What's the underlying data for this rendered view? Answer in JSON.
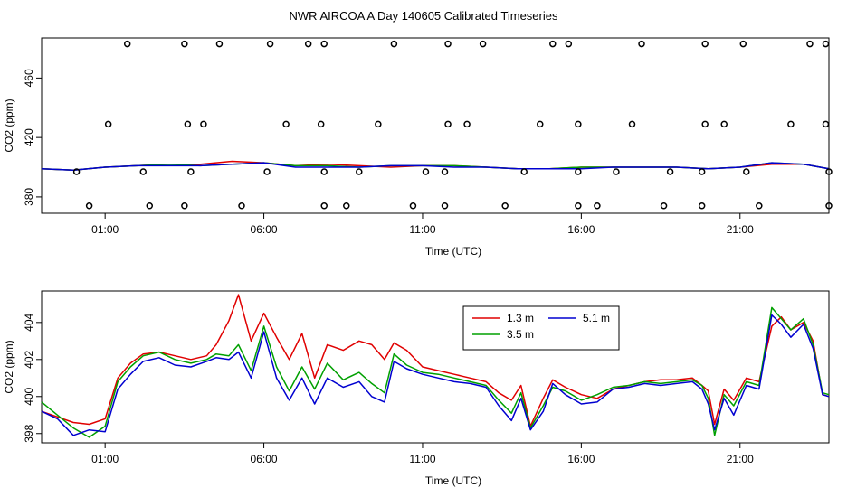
{
  "title": "NWR AIRCOA A  Day 140605  Calibrated Timeseries",
  "chart_data": [
    {
      "type": "scatter",
      "xlabel": "Time (UTC)",
      "ylabel": "CO2 (ppm)",
      "xlim": [
        -1.0,
        23.8
      ],
      "ylim": [
        369,
        487
      ],
      "x_ticks": [
        1,
        6,
        11,
        16,
        21
      ],
      "x_tick_labels": [
        "01:00",
        "06:00",
        "11:00",
        "16:00",
        "21:00"
      ],
      "y_ticks": [
        380,
        420,
        460
      ],
      "y_tick_labels": [
        "380",
        "420",
        "460"
      ],
      "grid": false,
      "calibration_points": {
        "name": "",
        "x": [
          1.1,
          3.6,
          4.1,
          6.7,
          7.8,
          9.6,
          11.8,
          12.4,
          14.7,
          15.9,
          17.6,
          19.9,
          20.5,
          22.6,
          23.7,
          1.7,
          3.5,
          4.6,
          6.2,
          7.4,
          7.9,
          10.1,
          11.8,
          12.9,
          15.1,
          15.6,
          17.9,
          19.9,
          21.1,
          23.2,
          23.7,
          0.5,
          2.4,
          3.5,
          5.3,
          7.9,
          8.6,
          10.7,
          11.7,
          13.6,
          15.9,
          16.5,
          18.6,
          19.8,
          21.6,
          23.8,
          0.1,
          2.2,
          3.7,
          6.1,
          7.9,
          9.0,
          11.1,
          11.7,
          14.2,
          15.9,
          17.1,
          18.8,
          19.8,
          21.2,
          23.8
        ],
        "y": [
          429,
          429,
          429,
          429,
          429,
          429,
          429,
          429,
          429,
          429,
          429,
          429,
          429,
          429,
          429,
          483,
          483,
          483,
          483,
          483,
          483,
          483,
          483,
          483,
          483,
          483,
          483,
          483,
          483,
          483,
          483,
          374,
          374,
          374,
          374,
          374,
          374,
          374,
          374,
          374,
          374,
          374,
          374,
          374,
          374,
          374,
          397,
          397,
          397,
          397,
          397,
          397,
          397,
          397,
          397,
          397,
          397,
          397,
          397,
          397,
          397
        ]
      },
      "series": [
        {
          "name": "1.3 m",
          "color": "#e00000",
          "x": [
            -1,
            0,
            1,
            2,
            3,
            4,
            5,
            6,
            7,
            8,
            9,
            10,
            11,
            12,
            13,
            14,
            15,
            16,
            17,
            18,
            19,
            20,
            21,
            22,
            23,
            23.8
          ],
          "values": [
            399,
            398,
            400,
            401,
            402,
            402,
            404,
            403,
            401,
            402,
            401,
            400,
            401,
            401,
            400,
            399,
            399,
            400,
            400,
            400,
            400,
            399,
            400,
            402,
            402,
            399
          ]
        },
        {
          "name": "3.5 m",
          "color": "#00a000",
          "x": [
            -1,
            0,
            1,
            2,
            3,
            4,
            5,
            6,
            7,
            8,
            9,
            10,
            11,
            12,
            13,
            14,
            15,
            16,
            17,
            18,
            19,
            20,
            21,
            22,
            23,
            23.8
          ],
          "values": [
            399,
            398,
            400,
            401,
            402,
            401,
            402,
            403,
            401,
            401,
            400,
            401,
            401,
            401,
            400,
            399,
            399,
            400,
            400,
            400,
            400,
            399,
            400,
            403,
            402,
            399
          ]
        },
        {
          "name": "5.1 m",
          "color": "#0000d0",
          "x": [
            -1,
            0,
            1,
            2,
            3,
            4,
            5,
            6,
            7,
            8,
            9,
            10,
            11,
            12,
            13,
            14,
            15,
            16,
            17,
            18,
            19,
            20,
            21,
            22,
            23,
            23.8
          ],
          "values": [
            399,
            398,
            400,
            401,
            401,
            401,
            402,
            403,
            400,
            400,
            400,
            401,
            401,
            400,
            400,
            399,
            399,
            399,
            400,
            400,
            400,
            399,
            400,
            403,
            402,
            399
          ]
        }
      ]
    },
    {
      "type": "line",
      "xlabel": "Time (UTC)",
      "ylabel": "CO2 (ppm)",
      "xlim": [
        -1.0,
        23.8
      ],
      "ylim": [
        397.5,
        405.7
      ],
      "x_ticks": [
        1,
        6,
        11,
        16,
        21
      ],
      "x_tick_labels": [
        "01:00",
        "06:00",
        "11:00",
        "16:00",
        "21:00"
      ],
      "y_ticks": [
        398,
        400,
        402,
        404
      ],
      "y_tick_labels": [
        "398",
        "400",
        "402",
        "404"
      ],
      "grid": false,
      "legend_position": "top-center",
      "series": [
        {
          "name": "1.3 m",
          "color": "#e00000",
          "x": [
            -1,
            -0.5,
            0,
            0.5,
            1,
            1.4,
            1.8,
            2.2,
            2.7,
            3.2,
            3.7,
            4.2,
            4.5,
            4.9,
            5.2,
            5.6,
            6.0,
            6.4,
            6.8,
            7.2,
            7.6,
            8.0,
            8.5,
            9.0,
            9.4,
            9.8,
            10.1,
            10.5,
            11.0,
            11.5,
            12.0,
            12.5,
            13.0,
            13.4,
            13.8,
            14.1,
            14.4,
            14.8,
            15.1,
            15.5,
            16.0,
            16.5,
            17.0,
            17.5,
            18.0,
            18.5,
            19.0,
            19.5,
            19.8,
            20.0,
            20.2,
            20.5,
            20.8,
            21.2,
            21.6,
            22.0,
            22.3,
            22.6,
            23.0,
            23.3,
            23.6,
            23.8
          ],
          "values": [
            399.2,
            398.9,
            398.6,
            398.5,
            398.8,
            401.0,
            401.8,
            402.3,
            402.4,
            402.2,
            402.0,
            402.2,
            402.8,
            404.1,
            405.5,
            403.0,
            404.5,
            403.2,
            402.0,
            403.4,
            401.0,
            402.8,
            402.5,
            403.0,
            402.8,
            402.0,
            402.9,
            402.5,
            401.6,
            401.4,
            401.2,
            401.0,
            400.8,
            400.2,
            399.8,
            400.6,
            398.4,
            399.9,
            400.9,
            400.5,
            400.1,
            399.9,
            400.4,
            400.6,
            400.8,
            400.9,
            400.9,
            401.0,
            400.6,
            400.3,
            398.5,
            400.4,
            399.8,
            401.0,
            400.8,
            403.8,
            404.3,
            403.6,
            404.0,
            403.0,
            400.1,
            400.0
          ]
        },
        {
          "name": "3.5 m",
          "color": "#00a000",
          "x": [
            -1,
            -0.5,
            0,
            0.5,
            1,
            1.4,
            1.8,
            2.2,
            2.7,
            3.2,
            3.7,
            4.2,
            4.5,
            4.9,
            5.2,
            5.6,
            6.0,
            6.4,
            6.8,
            7.2,
            7.6,
            8.0,
            8.5,
            9.0,
            9.4,
            9.8,
            10.1,
            10.5,
            11.0,
            11.5,
            12.0,
            12.5,
            13.0,
            13.4,
            13.8,
            14.1,
            14.4,
            14.8,
            15.1,
            15.5,
            16.0,
            16.5,
            17.0,
            17.5,
            18.0,
            18.5,
            19.0,
            19.5,
            19.8,
            20.0,
            20.2,
            20.5,
            20.8,
            21.2,
            21.6,
            22.0,
            22.3,
            22.6,
            23.0,
            23.3,
            23.6,
            23.8
          ],
          "values": [
            399.7,
            399.0,
            398.3,
            397.8,
            398.4,
            400.8,
            401.6,
            402.2,
            402.4,
            402.0,
            401.8,
            402.0,
            402.3,
            402.2,
            402.8,
            401.4,
            403.8,
            401.6,
            400.3,
            401.6,
            400.4,
            401.8,
            400.9,
            401.3,
            400.7,
            400.2,
            402.3,
            401.7,
            401.3,
            401.2,
            401.0,
            400.8,
            400.6,
            399.8,
            399.1,
            400.2,
            398.3,
            399.5,
            400.5,
            400.3,
            399.8,
            400.1,
            400.5,
            400.6,
            400.8,
            400.7,
            400.8,
            400.9,
            400.6,
            399.9,
            397.9,
            400.1,
            399.5,
            400.8,
            400.6,
            404.8,
            404.2,
            403.6,
            404.2,
            402.8,
            400.2,
            400.1
          ]
        },
        {
          "name": "5.1 m",
          "color": "#0000d0",
          "x": [
            -1,
            -0.5,
            0,
            0.5,
            1,
            1.4,
            1.8,
            2.2,
            2.7,
            3.2,
            3.7,
            4.2,
            4.5,
            4.9,
            5.2,
            5.6,
            6.0,
            6.4,
            6.8,
            7.2,
            7.6,
            8.0,
            8.5,
            9.0,
            9.4,
            9.8,
            10.1,
            10.5,
            11.0,
            11.5,
            12.0,
            12.5,
            13.0,
            13.4,
            13.8,
            14.1,
            14.4,
            14.8,
            15.1,
            15.5,
            16.0,
            16.5,
            17.0,
            17.5,
            18.0,
            18.5,
            19.0,
            19.5,
            19.8,
            20.0,
            20.2,
            20.5,
            20.8,
            21.2,
            21.6,
            22.0,
            22.3,
            22.6,
            23.0,
            23.3,
            23.6,
            23.8
          ],
          "values": [
            399.2,
            398.8,
            397.9,
            398.2,
            398.1,
            400.4,
            401.2,
            401.9,
            402.1,
            401.7,
            401.6,
            401.9,
            402.1,
            402.0,
            402.4,
            401.0,
            403.5,
            401.0,
            399.8,
            401.0,
            399.6,
            401.0,
            400.5,
            400.8,
            400.0,
            399.7,
            401.9,
            401.5,
            401.2,
            401.0,
            400.8,
            400.7,
            400.5,
            399.5,
            398.7,
            399.9,
            398.2,
            399.2,
            400.7,
            400.1,
            399.6,
            399.7,
            400.4,
            400.5,
            400.7,
            400.6,
            400.7,
            400.8,
            400.4,
            399.6,
            398.2,
            399.9,
            399.0,
            400.6,
            400.4,
            404.4,
            403.9,
            403.2,
            403.9,
            402.6,
            400.1,
            400.0
          ]
        }
      ]
    }
  ]
}
